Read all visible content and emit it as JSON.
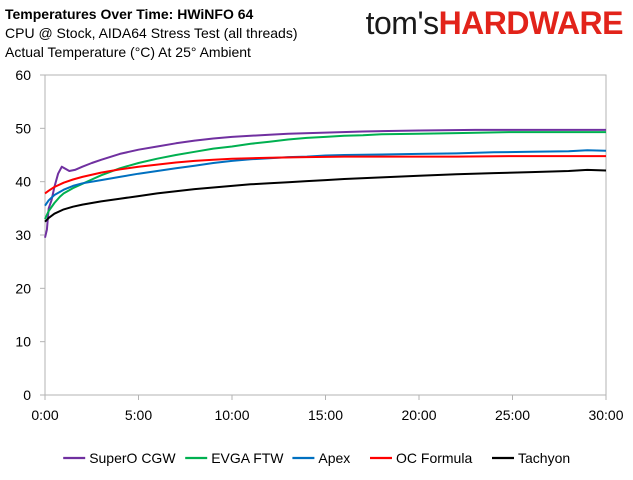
{
  "header": {
    "title": "Temperatures Over Time: HWiNFO 64",
    "subtitle1": "CPU @ Stock, AIDA64 Stress Test (all threads)",
    "subtitle2": "Actual Temperature (°C) At 25° Ambient"
  },
  "brand": {
    "part1": "tom's",
    "part2": "HARDWARE"
  },
  "chart_data": {
    "type": "line",
    "title": "Temperatures Over Time: HWiNFO 64",
    "x_ticks": [
      "0:00",
      "5:00",
      "10:00",
      "15:00",
      "20:00",
      "25:00",
      "30:00"
    ],
    "y_ticks": [
      "0",
      "10",
      "20",
      "30",
      "40",
      "50",
      "60"
    ],
    "xlim": [
      0,
      30
    ],
    "ylim": [
      0,
      60
    ],
    "x_unit": "minutes",
    "grid": false,
    "legend_position": "bottom",
    "series": [
      {
        "name": "SuperO CGW",
        "color": "#7030a0",
        "points": [
          [
            0,
            29.5
          ],
          [
            0.1,
            31
          ],
          [
            0.2,
            35
          ],
          [
            0.35,
            36.5
          ],
          [
            0.5,
            39
          ],
          [
            0.7,
            41.5
          ],
          [
            0.9,
            42.8
          ],
          [
            1.1,
            42.4
          ],
          [
            1.3,
            42.0
          ],
          [
            1.6,
            42.2
          ],
          [
            2,
            42.8
          ],
          [
            2.5,
            43.5
          ],
          [
            3,
            44.1
          ],
          [
            4,
            45.2
          ],
          [
            5,
            46.0
          ],
          [
            6,
            46.6
          ],
          [
            7,
            47.2
          ],
          [
            8,
            47.7
          ],
          [
            9,
            48.1
          ],
          [
            10,
            48.4
          ],
          [
            11,
            48.6
          ],
          [
            12,
            48.8
          ],
          [
            13,
            49.0
          ],
          [
            15,
            49.2
          ],
          [
            17,
            49.4
          ],
          [
            20,
            49.6
          ],
          [
            23,
            49.7
          ],
          [
            25,
            49.7
          ],
          [
            28,
            49.7
          ],
          [
            30,
            49.7
          ]
        ]
      },
      {
        "name": "EVGA FTW",
        "color": "#00b050",
        "points": [
          [
            0,
            33
          ],
          [
            0.2,
            34.5
          ],
          [
            0.5,
            36
          ],
          [
            0.8,
            37.2
          ],
          [
            1,
            37.8
          ],
          [
            1.5,
            38.8
          ],
          [
            2,
            39.6
          ],
          [
            2.5,
            40.4
          ],
          [
            3,
            41.2
          ],
          [
            4,
            42.5
          ],
          [
            5,
            43.5
          ],
          [
            6,
            44.3
          ],
          [
            7,
            45.0
          ],
          [
            8,
            45.6
          ],
          [
            9,
            46.2
          ],
          [
            10,
            46.6
          ],
          [
            11,
            47.1
          ],
          [
            12,
            47.5
          ],
          [
            13,
            47.9
          ],
          [
            14,
            48.2
          ],
          [
            15,
            48.4
          ],
          [
            16,
            48.6
          ],
          [
            17,
            48.7
          ],
          [
            18,
            48.9
          ],
          [
            20,
            49.0
          ],
          [
            22,
            49.1
          ],
          [
            25,
            49.3
          ],
          [
            28,
            49.3
          ],
          [
            30,
            49.3
          ]
        ]
      },
      {
        "name": "Apex",
        "color": "#0070c0",
        "points": [
          [
            0,
            35.5
          ],
          [
            0.2,
            36.5
          ],
          [
            0.5,
            37.5
          ],
          [
            1,
            38.5
          ],
          [
            1.5,
            39.2
          ],
          [
            2,
            39.7
          ],
          [
            3,
            40.3
          ],
          [
            4,
            40.9
          ],
          [
            5,
            41.5
          ],
          [
            6,
            42.0
          ],
          [
            7,
            42.5
          ],
          [
            8,
            43.0
          ],
          [
            9,
            43.5
          ],
          [
            10,
            43.9
          ],
          [
            11,
            44.2
          ],
          [
            12,
            44.4
          ],
          [
            13,
            44.6
          ],
          [
            14,
            44.7
          ],
          [
            15,
            44.9
          ],
          [
            16,
            45.0
          ],
          [
            18,
            45.1
          ],
          [
            20,
            45.2
          ],
          [
            22,
            45.3
          ],
          [
            24,
            45.5
          ],
          [
            26,
            45.6
          ],
          [
            28,
            45.7
          ],
          [
            29,
            45.9
          ],
          [
            30,
            45.8
          ]
        ]
      },
      {
        "name": "OC Formula",
        "color": "#ff0000",
        "points": [
          [
            0,
            37.8
          ],
          [
            0.2,
            38.3
          ],
          [
            0.5,
            39.0
          ],
          [
            1,
            39.8
          ],
          [
            1.5,
            40.4
          ],
          [
            2,
            40.9
          ],
          [
            3,
            41.7
          ],
          [
            4,
            42.3
          ],
          [
            5,
            42.8
          ],
          [
            6,
            43.2
          ],
          [
            7,
            43.6
          ],
          [
            8,
            43.9
          ],
          [
            9,
            44.1
          ],
          [
            10,
            44.3
          ],
          [
            11,
            44.4
          ],
          [
            12,
            44.5
          ],
          [
            14,
            44.6
          ],
          [
            16,
            44.7
          ],
          [
            18,
            44.7
          ],
          [
            20,
            44.7
          ],
          [
            22,
            44.7
          ],
          [
            25,
            44.8
          ],
          [
            28,
            44.8
          ],
          [
            30,
            44.8
          ]
        ]
      },
      {
        "name": "Tachyon",
        "color": "#000000",
        "points": [
          [
            0,
            32.5
          ],
          [
            0.2,
            33.2
          ],
          [
            0.5,
            34.0
          ],
          [
            1,
            34.8
          ],
          [
            1.5,
            35.3
          ],
          [
            2,
            35.7
          ],
          [
            3,
            36.3
          ],
          [
            4,
            36.8
          ],
          [
            5,
            37.3
          ],
          [
            6,
            37.8
          ],
          [
            7,
            38.2
          ],
          [
            8,
            38.6
          ],
          [
            9,
            38.9
          ],
          [
            10,
            39.2
          ],
          [
            11,
            39.5
          ],
          [
            12,
            39.7
          ],
          [
            13,
            39.9
          ],
          [
            14,
            40.1
          ],
          [
            15,
            40.3
          ],
          [
            16,
            40.5
          ],
          [
            18,
            40.8
          ],
          [
            20,
            41.1
          ],
          [
            22,
            41.4
          ],
          [
            24,
            41.6
          ],
          [
            26,
            41.8
          ],
          [
            28,
            42.0
          ],
          [
            29,
            42.2
          ],
          [
            30,
            42.1
          ]
        ]
      }
    ]
  }
}
